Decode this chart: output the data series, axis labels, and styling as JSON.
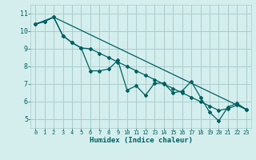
{
  "xlabel": "Humidex (Indice chaleur)",
  "background_color": "#d4eeee",
  "grid_color": "#aacccc",
  "line_color": "#006060",
  "xlim": [
    -0.5,
    23.5
  ],
  "ylim": [
    4.5,
    11.5
  ],
  "xticks": [
    0,
    1,
    2,
    3,
    4,
    5,
    6,
    7,
    8,
    9,
    10,
    11,
    12,
    13,
    14,
    15,
    16,
    17,
    18,
    19,
    20,
    21,
    22,
    23
  ],
  "yticks": [
    5,
    6,
    7,
    8,
    9,
    10,
    11
  ],
  "line1_x": [
    0,
    1,
    2,
    3,
    4,
    5,
    6,
    7,
    8,
    9,
    10,
    11,
    12,
    13,
    14,
    15,
    16,
    17,
    18,
    19,
    20,
    21,
    22,
    23
  ],
  "line1_y": [
    10.4,
    10.55,
    10.8,
    9.75,
    9.35,
    9.05,
    7.75,
    7.75,
    7.85,
    8.35,
    6.65,
    6.9,
    6.35,
    7.05,
    7.05,
    6.5,
    6.6,
    7.15,
    6.25,
    5.4,
    4.9,
    5.7,
    5.9,
    5.55
  ],
  "line2_x": [
    0,
    1,
    2,
    3,
    4,
    5,
    6,
    7,
    8,
    9,
    10,
    11,
    12,
    13,
    14,
    15,
    16,
    17,
    18,
    19,
    20,
    21,
    22,
    23
  ],
  "line2_y": [
    10.4,
    10.55,
    10.8,
    9.75,
    9.35,
    9.05,
    9.0,
    8.75,
    8.5,
    8.25,
    8.0,
    7.75,
    7.5,
    7.25,
    7.0,
    6.75,
    6.5,
    6.25,
    6.0,
    5.75,
    5.5,
    5.6,
    5.8,
    5.55
  ],
  "line3_x": [
    0,
    2,
    23
  ],
  "line3_y": [
    10.4,
    10.8,
    5.55
  ]
}
